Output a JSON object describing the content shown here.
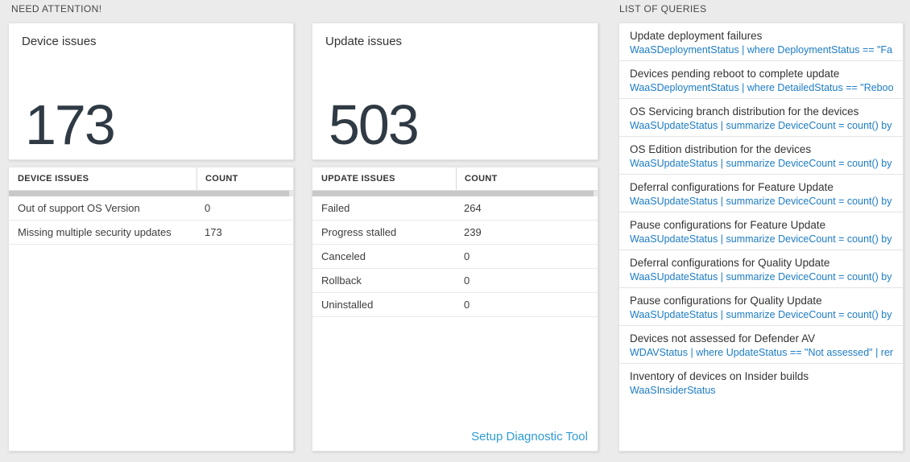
{
  "colors": {
    "page_background": "#ebebeb",
    "card_background": "#ffffff",
    "big_number_text": "#2f3a44",
    "query_link_blue": "#1c7cc5",
    "diagnostic_link_blue": "#2e9bd6",
    "scrollbar_thumb": "#c6c8c9"
  },
  "need_attention": {
    "title": "NEED ATTENTION!"
  },
  "device_card": {
    "title": "Device issues",
    "count": "173",
    "table": {
      "headers": [
        "DEVICE ISSUES",
        "COUNT"
      ],
      "rows": [
        {
          "label": "Out of support OS Version",
          "count": "0"
        },
        {
          "label": "Missing multiple security updates",
          "count": "173"
        }
      ]
    }
  },
  "update_card": {
    "title": "Update issues",
    "count": "503",
    "table": {
      "headers": [
        "UPDATE ISSUES",
        "COUNT"
      ],
      "rows": [
        {
          "label": "Failed",
          "count": "264"
        },
        {
          "label": "Progress stalled",
          "count": "239"
        },
        {
          "label": "Canceled",
          "count": "0"
        },
        {
          "label": "Rollback",
          "count": "0"
        },
        {
          "label": "Uninstalled",
          "count": "0"
        }
      ]
    },
    "link_label": "Setup Diagnostic Tool"
  },
  "queries_panel": {
    "title": "LIST OF QUERIES",
    "items": [
      {
        "title": "Update deployment failures",
        "query": "WaaSDeploymentStatus | where DeploymentStatus == \"Failed\" |..."
      },
      {
        "title": "Devices pending reboot to complete update",
        "query": "WaaSDeploymentStatus | where DetailedStatus == \"Reboot pend..."
      },
      {
        "title": "OS Servicing branch distribution for the devices",
        "query": "WaaSUpdateStatus | summarize DeviceCount = count() by OSSer..."
      },
      {
        "title": "OS Edition distribution for the devices",
        "query": "WaaSUpdateStatus | summarize DeviceCount = count() by OSEdit..."
      },
      {
        "title": "Deferral configurations for Feature Update",
        "query": "WaaSUpdateStatus | summarize DeviceCount = count() by Featur..."
      },
      {
        "title": "Pause configurations for Feature Update",
        "query": "WaaSUpdateStatus | summarize DeviceCount = count() by Featur..."
      },
      {
        "title": "Deferral configurations for Quality Update",
        "query": "WaaSUpdateStatus | summarize DeviceCount = count() by Qualit..."
      },
      {
        "title": "Pause configurations for Quality Update",
        "query": "WaaSUpdateStatus | summarize DeviceCount = count() by Qualit..."
      },
      {
        "title": "Devices not assessed for Defender AV",
        "query": "WDAVStatus | where UpdateStatus == \"Not assessed\" | render ta..."
      },
      {
        "title": "Inventory of devices on Insider builds",
        "query": "WaaSInsiderStatus"
      }
    ]
  }
}
